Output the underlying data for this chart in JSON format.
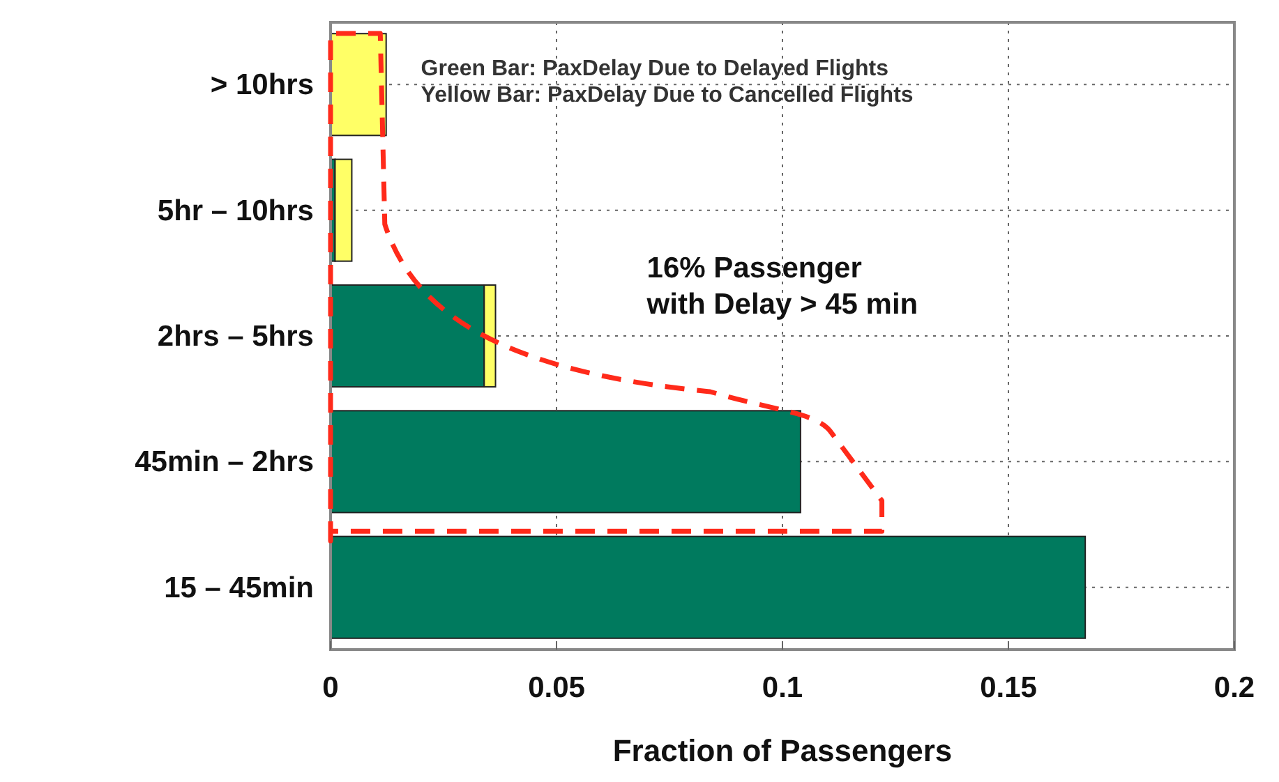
{
  "chart_data": {
    "type": "bar",
    "orientation": "horizontal",
    "stacked": true,
    "xlabel": "Fraction of Passengers",
    "categories": [
      "> 10hrs",
      "5hr – 10hrs",
      "2hrs – 5hrs",
      "45min – 2hrs",
      "15 – 45min"
    ],
    "series": [
      {
        "color": "#007a5e",
        "values": [
          null,
          0.001,
          0.034,
          0.104,
          0.167
        ]
      },
      {
        "color": "#ffff66",
        "values": [
          0.0123,
          0.0037,
          0.0025,
          null,
          null
        ]
      }
    ],
    "xlim": [
      0,
      0.2
    ],
    "xticks": [
      0,
      0.05,
      0.1,
      0.15,
      0.2
    ],
    "grid": true,
    "annotations": [
      "Green Bar: PaxDelay Due to Delayed Flights",
      "Yellow Bar: PaxDelay Due to Cancelled Flights",
      "16% Passenger\nwith Delay > 45 min"
    ]
  }
}
